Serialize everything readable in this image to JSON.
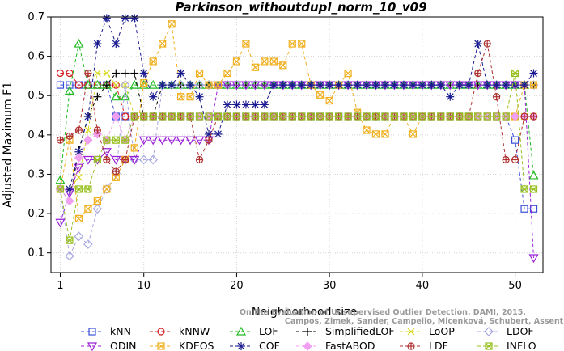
{
  "chart_data": {
    "type": "line",
    "title": "Parkinson_withoutdupl_norm_10_v09",
    "xlabel": "Neighborhood size",
    "ylabel": "Adjusted Maximum F1",
    "xlim": [
      0,
      53
    ],
    "ylim": [
      0.05,
      0.7
    ],
    "xticks": [
      1,
      10,
      20,
      30,
      40,
      50
    ],
    "yticks": [
      0.1,
      0.2,
      0.3,
      0.4,
      0.5,
      0.6,
      0.7
    ],
    "grid": true,
    "legend_position": "bottom",
    "credit": "Campos, Zimek, Sander, Campello, Micenková, Schubert, Assent, Houle\nOn the Evaluation of Unsupervised Outlier Detection. DAMI, 2015.",
    "x": [
      1,
      2,
      3,
      4,
      5,
      6,
      7,
      8,
      9,
      10,
      11,
      12,
      13,
      14,
      15,
      16,
      17,
      18,
      19,
      20,
      21,
      22,
      23,
      24,
      25,
      26,
      27,
      28,
      29,
      30,
      31,
      32,
      33,
      34,
      35,
      36,
      37,
      38,
      39,
      40,
      41,
      42,
      43,
      44,
      45,
      46,
      47,
      48,
      49,
      50,
      51,
      52
    ],
    "series": [
      {
        "name": "kNN",
        "color": "#3a4fd8",
        "marker": "square",
        "values": [
          0.527,
          0.527,
          0.527,
          0.527,
          0.527,
          0.527,
          0.447,
          0.447,
          0.447,
          0.447,
          0.447,
          0.447,
          0.447,
          0.447,
          0.447,
          0.447,
          0.447,
          0.447,
          0.447,
          0.447,
          0.447,
          0.447,
          0.447,
          0.447,
          0.447,
          0.447,
          0.447,
          0.447,
          0.447,
          0.447,
          0.447,
          0.447,
          0.447,
          0.447,
          0.447,
          0.447,
          0.447,
          0.447,
          0.447,
          0.447,
          0.447,
          0.447,
          0.447,
          0.447,
          0.447,
          0.447,
          0.447,
          0.447,
          0.447,
          0.387,
          0.212,
          0.212
        ]
      },
      {
        "name": "kNNW",
        "color": "#d42020",
        "marker": "circle",
        "values": [
          0.557,
          0.557,
          0.527,
          0.527,
          0.527,
          0.527,
          0.527,
          0.447,
          0.447,
          0.447,
          0.447,
          0.447,
          0.447,
          0.447,
          0.447,
          0.447,
          0.447,
          0.447,
          0.447,
          0.447,
          0.447,
          0.447,
          0.447,
          0.447,
          0.447,
          0.447,
          0.447,
          0.447,
          0.447,
          0.447,
          0.447,
          0.447,
          0.447,
          0.447,
          0.447,
          0.447,
          0.447,
          0.447,
          0.447,
          0.447,
          0.447,
          0.447,
          0.447,
          0.447,
          0.447,
          0.447,
          0.447,
          0.447,
          0.447,
          0.447,
          0.447,
          0.447
        ]
      },
      {
        "name": "LOF",
        "color": "#22bb22",
        "marker": "triangle-up",
        "values": [
          0.285,
          0.512,
          0.632,
          0.527,
          0.527,
          0.527,
          0.497,
          0.497,
          0.527,
          0.527,
          0.527,
          0.527,
          0.527,
          0.527,
          0.527,
          0.527,
          0.527,
          0.527,
          0.527,
          0.527,
          0.527,
          0.527,
          0.527,
          0.527,
          0.527,
          0.527,
          0.527,
          0.527,
          0.527,
          0.527,
          0.527,
          0.527,
          0.527,
          0.527,
          0.527,
          0.527,
          0.527,
          0.527,
          0.527,
          0.527,
          0.527,
          0.527,
          0.527,
          0.527,
          0.527,
          0.527,
          0.527,
          0.527,
          0.527,
          0.527,
          0.527,
          0.297
        ]
      },
      {
        "name": "SimplifiedLOF",
        "color": "#000000",
        "marker": "plus",
        "values": [
          0.262,
          0.232,
          0.362,
          0.447,
          0.497,
          0.527,
          0.557,
          0.557,
          0.557,
          0.447,
          0.447,
          0.527,
          0.527,
          0.527,
          0.527,
          0.527,
          0.527,
          0.527,
          0.527,
          0.527,
          0.527,
          0.527,
          0.527,
          0.527,
          0.527,
          0.527,
          0.527,
          0.527,
          0.527,
          0.527,
          0.527,
          0.527,
          0.527,
          0.527,
          0.527,
          0.527,
          0.527,
          0.527,
          0.527,
          0.527,
          0.527,
          0.527,
          0.527,
          0.527,
          0.527,
          0.527,
          0.527,
          0.527,
          0.527,
          0.527,
          0.527,
          0.527
        ]
      },
      {
        "name": "LoOP",
        "color": "#d8d820",
        "marker": "cross",
        "values": [
          0.262,
          0.262,
          0.292,
          0.412,
          0.557,
          0.557,
          0.527,
          0.527,
          0.447,
          0.447,
          0.447,
          0.447,
          0.447,
          0.447,
          0.447,
          0.447,
          0.447,
          0.447,
          0.447,
          0.447,
          0.447,
          0.447,
          0.447,
          0.447,
          0.447,
          0.447,
          0.447,
          0.447,
          0.447,
          0.447,
          0.447,
          0.447,
          0.447,
          0.447,
          0.447,
          0.447,
          0.447,
          0.447,
          0.447,
          0.447,
          0.447,
          0.447,
          0.447,
          0.447,
          0.447,
          0.447,
          0.447,
          0.447,
          0.447,
          0.447,
          0.447,
          0.447
        ]
      },
      {
        "name": "LDOF",
        "color": "#a8a8e0",
        "marker": "diamond",
        "values": [
          0.262,
          0.092,
          0.142,
          0.122,
          0.212,
          0.262,
          0.302,
          0.527,
          0.337,
          0.337,
          0.337,
          0.527,
          0.527,
          0.527,
          0.527,
          0.527,
          0.527,
          0.527,
          0.527,
          0.527,
          0.527,
          0.527,
          0.527,
          0.527,
          0.527,
          0.527,
          0.527,
          0.527,
          0.527,
          0.527,
          0.527,
          0.527,
          0.527,
          0.527,
          0.527,
          0.527,
          0.527,
          0.527,
          0.527,
          0.527,
          0.527,
          0.527,
          0.527,
          0.527,
          0.527,
          0.527,
          0.527,
          0.527,
          0.527,
          0.527,
          0.527,
          0.527
        ]
      },
      {
        "name": "ODIN",
        "color": "#9a20d8",
        "marker": "triangle-down",
        "values": [
          0.177,
          0.252,
          0.317,
          0.337,
          0.337,
          0.357,
          0.337,
          0.337,
          0.337,
          0.387,
          0.387,
          0.387,
          0.387,
          0.387,
          0.387,
          0.387,
          0.387,
          0.527,
          0.527,
          0.527,
          0.527,
          0.527,
          0.527,
          0.527,
          0.527,
          0.527,
          0.527,
          0.527,
          0.527,
          0.527,
          0.527,
          0.527,
          0.527,
          0.527,
          0.527,
          0.527,
          0.527,
          0.527,
          0.527,
          0.527,
          0.527,
          0.527,
          0.527,
          0.527,
          0.527,
          0.527,
          0.527,
          0.527,
          0.527,
          0.527,
          0.527,
          0.087
        ]
      },
      {
        "name": "KDEOS",
        "color": "#f0b020",
        "marker": "square-x",
        "values": [
          0.262,
          0.387,
          0.187,
          0.212,
          0.232,
          0.262,
          0.292,
          0.337,
          0.367,
          0.532,
          0.587,
          0.632,
          0.682,
          0.497,
          0.497,
          0.557,
          0.527,
          0.527,
          0.557,
          0.587,
          0.632,
          0.572,
          0.587,
          0.587,
          0.577,
          0.632,
          0.632,
          0.527,
          0.502,
          0.487,
          0.527,
          0.557,
          0.457,
          0.412,
          0.402,
          0.402,
          0.447,
          0.447,
          0.402,
          0.447,
          0.447,
          0.447,
          0.447,
          0.447,
          0.447,
          0.447,
          0.447,
          0.447,
          0.447,
          0.447,
          0.527,
          0.527
        ]
      },
      {
        "name": "COF",
        "color": "#1a1a90",
        "marker": "asterisk",
        "values": [
          0.262,
          0.262,
          0.357,
          0.447,
          0.632,
          0.697,
          0.632,
          0.697,
          0.697,
          0.557,
          0.497,
          0.527,
          0.527,
          0.557,
          0.527,
          0.497,
          0.402,
          0.402,
          0.477,
          0.477,
          0.477,
          0.477,
          0.477,
          0.527,
          0.527,
          0.527,
          0.527,
          0.527,
          0.527,
          0.527,
          0.527,
          0.527,
          0.527,
          0.527,
          0.527,
          0.527,
          0.527,
          0.527,
          0.527,
          0.527,
          0.527,
          0.527,
          0.497,
          0.527,
          0.527,
          0.632,
          0.527,
          0.527,
          0.527,
          0.527,
          0.527,
          0.557
        ]
      },
      {
        "name": "FastABOD",
        "color": "#f0a0f0",
        "marker": "diamond-filled",
        "values": [
          0.262,
          0.232,
          0.342,
          0.387,
          0.402,
          0.387,
          0.447,
          0.387,
          0.447,
          0.447,
          0.447,
          0.447,
          0.447,
          0.447,
          0.447,
          0.447,
          0.447,
          0.447,
          0.447,
          0.447,
          0.447,
          0.447,
          0.447,
          0.447,
          0.447,
          0.447,
          0.447,
          0.447,
          0.447,
          0.447,
          0.447,
          0.447,
          0.447,
          0.447,
          0.447,
          0.447,
          0.447,
          0.447,
          0.447,
          0.447,
          0.447,
          0.447,
          0.447,
          0.447,
          0.447,
          0.447,
          0.447,
          0.447,
          0.447,
          0.447,
          0.447,
          0.447
        ]
      },
      {
        "name": "LDF",
        "color": "#b03030",
        "marker": "circle-plus",
        "values": [
          0.387,
          0.397,
          0.412,
          0.557,
          0.412,
          0.337,
          0.307,
          0.337,
          0.447,
          0.447,
          0.447,
          0.447,
          0.447,
          0.447,
          0.447,
          0.337,
          0.387,
          0.447,
          0.447,
          0.447,
          0.447,
          0.447,
          0.447,
          0.447,
          0.447,
          0.447,
          0.447,
          0.447,
          0.447,
          0.447,
          0.447,
          0.447,
          0.447,
          0.447,
          0.447,
          0.447,
          0.447,
          0.447,
          0.447,
          0.447,
          0.447,
          0.447,
          0.447,
          0.447,
          0.447,
          0.557,
          0.632,
          0.497,
          0.337,
          0.337,
          0.447,
          0.447
        ]
      },
      {
        "name": "INFLO",
        "color": "#98c020",
        "marker": "star-square",
        "values": [
          0.262,
          0.132,
          0.262,
          0.262,
          0.337,
          0.387,
          0.387,
          0.387,
          0.447,
          0.447,
          0.447,
          0.447,
          0.447,
          0.447,
          0.447,
          0.447,
          0.447,
          0.447,
          0.447,
          0.447,
          0.447,
          0.447,
          0.447,
          0.447,
          0.447,
          0.447,
          0.447,
          0.447,
          0.447,
          0.447,
          0.447,
          0.447,
          0.447,
          0.447,
          0.447,
          0.447,
          0.447,
          0.447,
          0.447,
          0.447,
          0.447,
          0.447,
          0.447,
          0.447,
          0.447,
          0.447,
          0.447,
          0.447,
          0.447,
          0.557,
          0.262,
          0.262
        ]
      }
    ]
  }
}
